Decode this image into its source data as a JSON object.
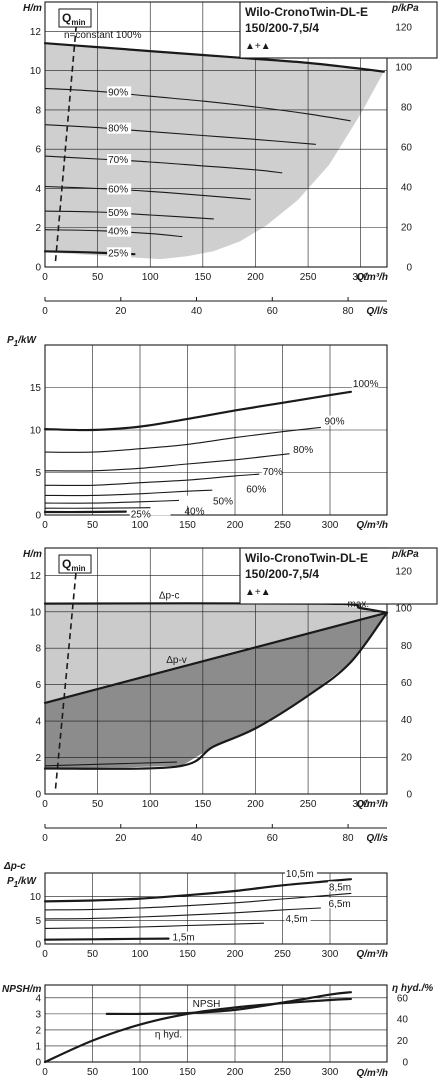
{
  "page": {
    "model_name": "Wilo-CronoTwin-DL-E",
    "model_size": "150/200-7,5/4",
    "pump_symbols": "▲+▲"
  },
  "chart_data": [
    {
      "type": "line",
      "panel": "H-Q n=constant",
      "xlabel": "Q/m³/h",
      "ylabel": "H/m",
      "y2label": "p/kPa",
      "x2label": "Q/l/s",
      "xlim": [
        0,
        325
      ],
      "ylim": [
        0,
        13.5
      ],
      "xticks": [
        0,
        50,
        100,
        150,
        200,
        250,
        300
      ],
      "yticks": [
        0,
        2,
        4,
        6,
        8,
        10,
        12
      ],
      "y2ticks": [
        0,
        20,
        40,
        60,
        80,
        100,
        120
      ],
      "x2ticks": [
        0,
        20,
        40,
        60,
        80
      ],
      "qmin_label": "Q",
      "qmin_sub": "min",
      "qmin_line": [
        [
          10,
          0.3
        ],
        [
          30,
          12.5
        ]
      ],
      "shaded_region": [
        [
          0,
          11.4
        ],
        [
          50,
          11.2
        ],
        [
          100,
          11.0
        ],
        [
          150,
          10.8
        ],
        [
          200,
          10.6
        ],
        [
          250,
          10.4
        ],
        [
          300,
          10.1
        ],
        [
          322,
          9.95
        ],
        [
          300,
          7.8
        ],
        [
          270,
          5.2
        ],
        [
          240,
          3.4
        ],
        [
          210,
          2.1
        ],
        [
          185,
          1.3
        ],
        [
          160,
          0.8
        ],
        [
          135,
          0.55
        ],
        [
          110,
          0.4
        ],
        [
          0,
          0.75
        ]
      ],
      "grid": true,
      "series": [
        {
          "name": "n=constant 100%",
          "width": 2.2,
          "points": [
            [
              0,
              11.4
            ],
            [
              50,
              11.2
            ],
            [
              100,
              11.0
            ],
            [
              150,
              10.8
            ],
            [
              200,
              10.6
            ],
            [
              250,
              10.4
            ],
            [
              300,
              10.1
            ],
            [
              322,
              9.95
            ]
          ]
        },
        {
          "name": "90%",
          "width": 1.1,
          "points": [
            [
              0,
              9.1
            ],
            [
              50,
              8.95
            ],
            [
              100,
              8.7
            ],
            [
              150,
              8.45
            ],
            [
              200,
              8.15
            ],
            [
              250,
              7.8
            ],
            [
              290,
              7.45
            ]
          ]
        },
        {
          "name": "80%",
          "width": 1.1,
          "points": [
            [
              0,
              7.25
            ],
            [
              50,
              7.1
            ],
            [
              100,
              6.9
            ],
            [
              150,
              6.7
            ],
            [
              200,
              6.5
            ],
            [
              257,
              6.25
            ]
          ]
        },
        {
          "name": "70%",
          "width": 1.1,
          "points": [
            [
              0,
              5.65
            ],
            [
              50,
              5.5
            ],
            [
              100,
              5.35
            ],
            [
              150,
              5.15
            ],
            [
              200,
              4.95
            ],
            [
              225,
              4.8
            ]
          ]
        },
        {
          "name": "60%",
          "width": 1.1,
          "points": [
            [
              0,
              4.1
            ],
            [
              50,
              4.0
            ],
            [
              100,
              3.85
            ],
            [
              150,
              3.65
            ],
            [
              195,
              3.45
            ]
          ]
        },
        {
          "name": "50%",
          "width": 1.1,
          "points": [
            [
              0,
              2.85
            ],
            [
              50,
              2.8
            ],
            [
              100,
              2.65
            ],
            [
              160,
              2.45
            ]
          ]
        },
        {
          "name": "40%",
          "width": 1.1,
          "points": [
            [
              0,
              1.9
            ],
            [
              50,
              1.85
            ],
            [
              100,
              1.7
            ],
            [
              130,
              1.55
            ]
          ]
        },
        {
          "name": "25%",
          "width": 2.2,
          "points": [
            [
              0,
              0.8
            ],
            [
              40,
              0.75
            ],
            [
              85,
              0.65
            ]
          ]
        }
      ]
    },
    {
      "type": "line",
      "panel": "P1-Q n=constant",
      "xlabel": "Q/m³/h",
      "ylabel": "P",
      "ylabel_sub": "1",
      "ylabel_unit": "/kW",
      "xlim": [
        0,
        360
      ],
      "ylim": [
        0,
        20
      ],
      "xticks": [
        0,
        50,
        100,
        150,
        200,
        250,
        300
      ],
      "yticks": [
        0,
        5,
        10,
        15
      ],
      "grid": true,
      "series": [
        {
          "name": "100%",
          "width": 2.2,
          "points": [
            [
              0,
              10.1
            ],
            [
              50,
              10.0
            ],
            [
              100,
              10.4
            ],
            [
              150,
              11.3
            ],
            [
              200,
              12.3
            ],
            [
              250,
              13.2
            ],
            [
              300,
              14.1
            ],
            [
              322,
              14.5
            ]
          ]
        },
        {
          "name": "90%",
          "width": 1.1,
          "points": [
            [
              0,
              7.4
            ],
            [
              50,
              7.4
            ],
            [
              100,
              7.8
            ],
            [
              150,
              8.3
            ],
            [
              200,
              9.1
            ],
            [
              250,
              9.8
            ],
            [
              290,
              10.3
            ]
          ]
        },
        {
          "name": "80%",
          "width": 1.1,
          "points": [
            [
              0,
              5.2
            ],
            [
              50,
              5.2
            ],
            [
              100,
              5.5
            ],
            [
              150,
              6.0
            ],
            [
              200,
              6.5
            ],
            [
              257,
              7.2
            ]
          ]
        },
        {
          "name": "70%",
          "width": 1.1,
          "points": [
            [
              0,
              3.5
            ],
            [
              50,
              3.5
            ],
            [
              100,
              3.8
            ],
            [
              150,
              4.1
            ],
            [
              200,
              4.6
            ],
            [
              225,
              4.8
            ]
          ]
        },
        {
          "name": "60%",
          "width": 1.1,
          "points": [
            [
              0,
              2.3
            ],
            [
              50,
              2.3
            ],
            [
              100,
              2.5
            ],
            [
              150,
              2.8
            ],
            [
              195,
              3.0
            ]
          ]
        },
        {
          "name": "50%",
          "width": 1.1,
          "points": [
            [
              0,
              1.4
            ],
            [
              50,
              1.4
            ],
            [
              100,
              1.55
            ],
            [
              160,
              1.8
            ]
          ]
        },
        {
          "name": "40%",
          "width": 1.1,
          "points": [
            [
              0,
              0.8
            ],
            [
              50,
              0.8
            ],
            [
              100,
              0.85
            ],
            [
              130,
              0.9
            ]
          ]
        },
        {
          "name": "25%",
          "width": 2.2,
          "points": [
            [
              0,
              0.35
            ],
            [
              40,
              0.35
            ],
            [
              85,
              0.4
            ]
          ]
        }
      ]
    },
    {
      "type": "line",
      "panel": "H-Q dp-c / dp-v",
      "xlabel": "Q/m³/h",
      "ylabel": "H/m",
      "y2label": "p/kPa",
      "x2label": "Q/l/s",
      "xlim": [
        0,
        325
      ],
      "ylim": [
        0,
        13.5
      ],
      "xticks": [
        0,
        50,
        100,
        150,
        200,
        250,
        300
      ],
      "yticks": [
        0,
        2,
        4,
        6,
        8,
        10,
        12
      ],
      "y2ticks": [
        0,
        20,
        40,
        60,
        80,
        100,
        120
      ],
      "x2ticks": [
        0,
        20,
        40,
        60,
        80
      ],
      "qmin_label": "Q",
      "qmin_sub": "min",
      "qmin_line": [
        [
          10,
          0.3
        ],
        [
          30,
          12.5
        ]
      ],
      "labels": [
        "Δp-c",
        "Δp-v",
        "max."
      ],
      "light_region": [
        [
          0,
          10.45
        ],
        [
          265,
          10.45
        ],
        [
          300,
          10.2
        ],
        [
          325,
          9.95
        ],
        [
          0,
          5.0
        ]
      ],
      "dark_region": [
        [
          0,
          5.0
        ],
        [
          325,
          9.95
        ],
        [
          290,
          7.2
        ],
        [
          250,
          5.4
        ],
        [
          200,
          3.6
        ],
        [
          160,
          2.6
        ],
        [
          130,
          1.55
        ],
        [
          0,
          1.35
        ]
      ],
      "grid": true,
      "series": [
        {
          "name": "Δp-c",
          "width": 2.2,
          "points": [
            [
              0,
              10.45
            ],
            [
              265,
              10.45
            ],
            [
              300,
              10.2
            ],
            [
              325,
              9.95
            ]
          ]
        },
        {
          "name": "Δp-v",
          "width": 2.2,
          "points": [
            [
              0,
              5.0
            ],
            [
              325,
              9.95
            ]
          ]
        },
        {
          "name": "max.",
          "width": 2.2,
          "points": [
            [
              325,
              9.95
            ],
            [
              290,
              7.2
            ],
            [
              250,
              5.4
            ],
            [
              200,
              3.6
            ],
            [
              160,
              2.6
            ],
            [
              125,
              1.5
            ],
            [
              0,
              1.4
            ]
          ]
        },
        {
          "name": "min",
          "width": 1.1,
          "points": [
            [
              0,
              1.55
            ],
            [
              125,
              1.75
            ]
          ]
        }
      ]
    },
    {
      "type": "line",
      "panel": "dp-c P1-Q",
      "xlabel": "Q/m³/h",
      "ylabel_top": "Δp-c",
      "ylabel": "P",
      "ylabel_sub": "1",
      "ylabel_unit": "/kW",
      "xlim": [
        0,
        360
      ],
      "ylim": [
        0,
        15
      ],
      "xticks": [
        0,
        50,
        100,
        150,
        200,
        250,
        300
      ],
      "yticks": [
        0,
        5,
        10
      ],
      "grid": true,
      "series": [
        {
          "name": "10,5m",
          "width": 2.2,
          "points": [
            [
              0,
              9.0
            ],
            [
              50,
              9.2
            ],
            [
              100,
              9.6
            ],
            [
              150,
              10.3
            ],
            [
              200,
              11.2
            ],
            [
              250,
              12.4
            ],
            [
              300,
              13.3
            ],
            [
              322,
              13.7
            ]
          ]
        },
        {
          "name": "8,5m",
          "width": 1.1,
          "points": [
            [
              0,
              7.2
            ],
            [
              50,
              7.3
            ],
            [
              100,
              7.6
            ],
            [
              150,
              8.1
            ],
            [
              200,
              8.7
            ],
            [
              250,
              9.5
            ],
            [
              300,
              10.3
            ],
            [
              322,
              10.7
            ]
          ]
        },
        {
          "name": "6,5m",
          "width": 1.1,
          "points": [
            [
              0,
              5.3
            ],
            [
              50,
              5.4
            ],
            [
              100,
              5.7
            ],
            [
              150,
              6.1
            ],
            [
              200,
              6.6
            ],
            [
              250,
              7.2
            ],
            [
              290,
              7.6
            ]
          ]
        },
        {
          "name": "4,5m",
          "width": 1.1,
          "points": [
            [
              0,
              3.3
            ],
            [
              50,
              3.4
            ],
            [
              100,
              3.6
            ],
            [
              150,
              3.9
            ],
            [
              200,
              4.2
            ],
            [
              230,
              4.4
            ]
          ]
        },
        {
          "name": "1,5m",
          "width": 2.2,
          "points": [
            [
              0,
              0.9
            ],
            [
              50,
              1.0
            ],
            [
              100,
              1.1
            ],
            [
              130,
              1.15
            ]
          ]
        }
      ]
    },
    {
      "type": "line",
      "panel": "NPSH / efficiency",
      "xlabel": "Q/m³/h",
      "ylabel": "NPSH/m",
      "y2label": "η hyd./%",
      "xlim": [
        0,
        360
      ],
      "ylim": [
        0,
        4.8
      ],
      "y2lim": [
        0,
        72
      ],
      "xticks": [
        0,
        50,
        100,
        150,
        200,
        250,
        300
      ],
      "yticks": [
        0,
        1,
        2,
        3,
        4
      ],
      "y2ticks": [
        0,
        20,
        40,
        60
      ],
      "grid": true,
      "series": [
        {
          "name": "NPSH",
          "width": 2.2,
          "points": [
            [
              65,
              3.0
            ],
            [
              100,
              3.0
            ],
            [
              150,
              3.05
            ],
            [
              200,
              3.25
            ],
            [
              250,
              3.7
            ],
            [
              300,
              4.2
            ],
            [
              322,
              4.35
            ]
          ]
        },
        {
          "name": "η hyd.",
          "width": 2.2,
          "axis": "right",
          "points": [
            [
              0,
              0
            ],
            [
              50,
              20
            ],
            [
              100,
              35
            ],
            [
              150,
              45
            ],
            [
              200,
              51
            ],
            [
              250,
              55
            ],
            [
              300,
              58
            ],
            [
              322,
              59
            ]
          ]
        }
      ]
    }
  ]
}
